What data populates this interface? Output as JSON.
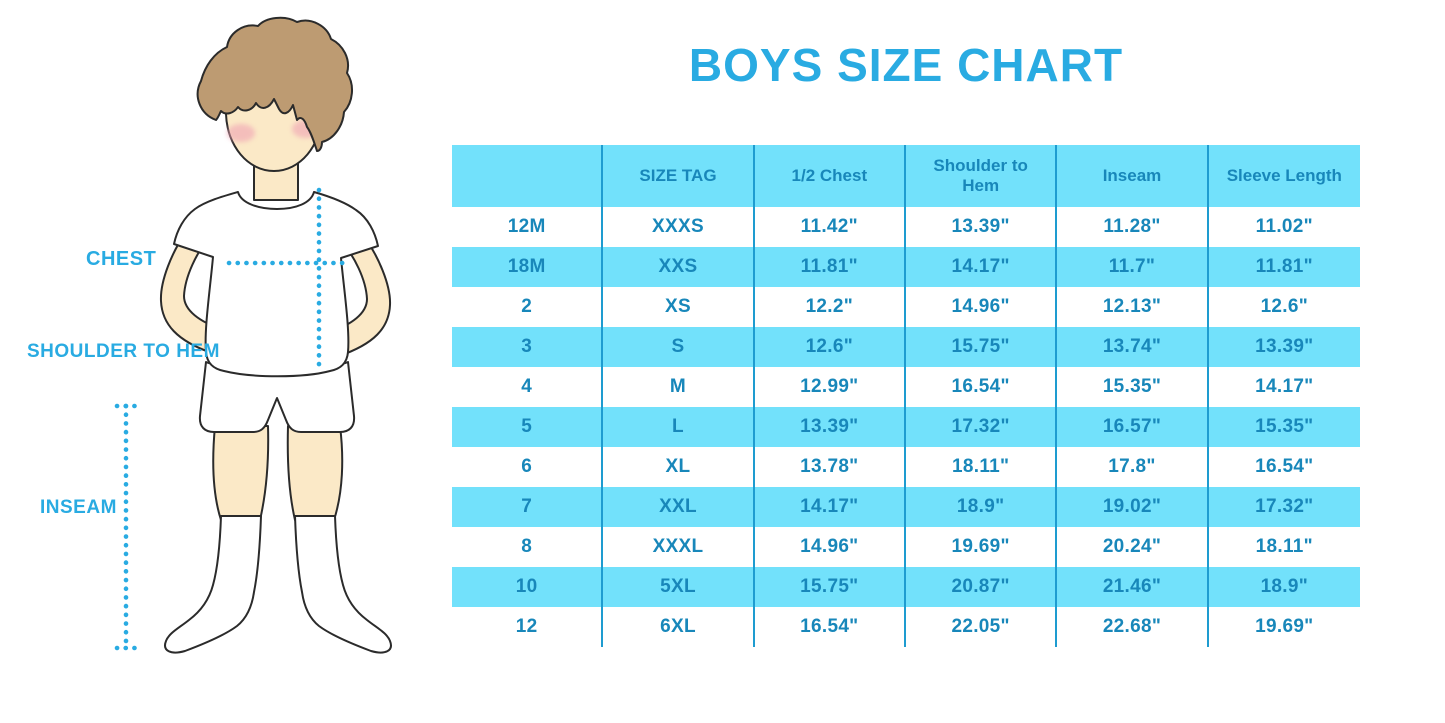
{
  "title": "BOYS SIZE CHART",
  "figure": {
    "labels": {
      "chest": "CHEST",
      "shoulder_to_hem": "SHOULDER TO HEM",
      "inseam": "INSEAM"
    }
  },
  "colors": {
    "accent_blue": "#29ABE2",
    "table_row_blue": "#72E1FB",
    "table_text_blue": "#1887BA",
    "column_line_blue": "#1E9CD0",
    "hair_brown": "#BD9B72",
    "skin": "#FBE9C7",
    "blush_pink": "#F0A3B4"
  },
  "chart_data": {
    "type": "table",
    "title": "BOYS SIZE CHART",
    "columns": [
      "",
      "SIZE TAG",
      "1/2 Chest",
      "Shoulder to Hem",
      "Inseam",
      "Sleeve Length"
    ],
    "rows": [
      [
        "12M",
        "XXXS",
        "11.42\"",
        "13.39\"",
        "11.28\"",
        "11.02\""
      ],
      [
        "18M",
        "XXS",
        "11.81\"",
        "14.17\"",
        "11.7\"",
        "11.81\""
      ],
      [
        "2",
        "XS",
        "12.2\"",
        "14.96\"",
        "12.13\"",
        "12.6\""
      ],
      [
        "3",
        "S",
        "12.6\"",
        "15.75\"",
        "13.74\"",
        "13.39\""
      ],
      [
        "4",
        "M",
        "12.99\"",
        "16.54\"",
        "15.35\"",
        "14.17\""
      ],
      [
        "5",
        "L",
        "13.39\"",
        "17.32\"",
        "16.57\"",
        "15.35\""
      ],
      [
        "6",
        "XL",
        "13.78\"",
        "18.11\"",
        "17.8\"",
        "16.54\""
      ],
      [
        "7",
        "XXL",
        "14.17\"",
        "18.9\"",
        "19.02\"",
        "17.32\""
      ],
      [
        "8",
        "XXXL",
        "14.96\"",
        "19.69\"",
        "20.24\"",
        "18.11\""
      ],
      [
        "10",
        "5XL",
        "15.75\"",
        "20.87\"",
        "21.46\"",
        "18.9\""
      ],
      [
        "12",
        "6XL",
        "16.54\"",
        "22.05\"",
        "22.68\"",
        "19.69\""
      ]
    ],
    "row_striping": "alternating white and light blue, starting white",
    "legend_position": "none",
    "grid": "vertical column separators only"
  }
}
